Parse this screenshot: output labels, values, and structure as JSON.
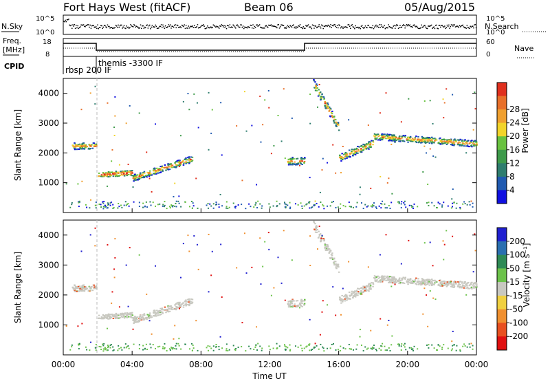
{
  "header": {
    "title": "Fort Hays West (fitACF)",
    "beam": "Beam 06",
    "date": "05/Aug/2015"
  },
  "top_panels": {
    "nsky_label": "N.Sky",
    "nsearch_label": "N.Search",
    "nsky_ticks": [
      "10^5",
      "10^0"
    ],
    "nsearch_ticks": [
      "10^5",
      "10^0"
    ],
    "freq_label_1": "Freq.",
    "freq_label_2": "[MHz]",
    "freq_ticks": [
      "18",
      "8"
    ],
    "nave_label": "Nave",
    "nave_ticks": [
      "60",
      "0"
    ],
    "cpid_label": "CPID",
    "cpid_1": "rbsp 200 IF",
    "cpid_2": "themis -3300 IF"
  },
  "chart_data": [
    {
      "type": "heatmap",
      "name": "power",
      "ylabel": "Slant Range [km]",
      "ylim": [
        0,
        4500
      ],
      "yticks": [
        1000,
        2000,
        3000,
        4000
      ],
      "xlim": [
        0,
        24
      ],
      "colorbar_label": "Power [dB]",
      "colorbar_ticks": [
        "4",
        "8",
        "12",
        "16",
        "20",
        "24",
        "28"
      ],
      "colorbar_colors": [
        "#1010e0",
        "#205ab0",
        "#2e7d6e",
        "#3e9a4a",
        "#69c240",
        "#f2d42a",
        "#f0a030",
        "#e8702a",
        "#e0301e"
      ],
      "scatter_bands": [
        {
          "start": 0.5,
          "end": 1.9,
          "center": 2250,
          "width": 220,
          "tilt": 0
        },
        {
          "start": 2.0,
          "end": 4.0,
          "center": 1320,
          "width": 170,
          "tilt": 60
        },
        {
          "start": 4.0,
          "end": 7.5,
          "center": 1500,
          "width": 220,
          "tilt": 650
        },
        {
          "start": 13.0,
          "end": 14.0,
          "center": 1750,
          "width": 250,
          "tilt": 0
        },
        {
          "start": 14.5,
          "end": 16.0,
          "center": 3600,
          "width": 300,
          "tilt": -1500
        },
        {
          "start": 16.0,
          "end": 18.0,
          "center": 2100,
          "width": 250,
          "tilt": 500
        },
        {
          "start": 18.0,
          "end": 24.0,
          "center": 2450,
          "width": 220,
          "tilt": -250
        }
      ]
    },
    {
      "type": "heatmap",
      "name": "velocity",
      "ylabel": "Slant Range [km]",
      "ylim": [
        0,
        4500
      ],
      "yticks": [
        1000,
        2000,
        3000,
        4000
      ],
      "xlim": [
        0,
        24
      ],
      "colorbar_label": "Velocity [m s⁻¹]",
      "colorbar_ticks": [
        "200",
        "100",
        "50",
        "15",
        "-15",
        "-50",
        "-100",
        "-200"
      ],
      "colorbar_colors": [
        "#2020d0",
        "#2a6fb0",
        "#2e8a55",
        "#6cc24a",
        "#c8c8c0",
        "#f0d040",
        "#f09030",
        "#e85020",
        "#e01010"
      ]
    }
  ],
  "xaxis": {
    "label": "Time UT",
    "ticks": [
      "00:00",
      "04:00",
      "08:00",
      "12:00",
      "16:00",
      "20:00",
      "00:00"
    ]
  }
}
